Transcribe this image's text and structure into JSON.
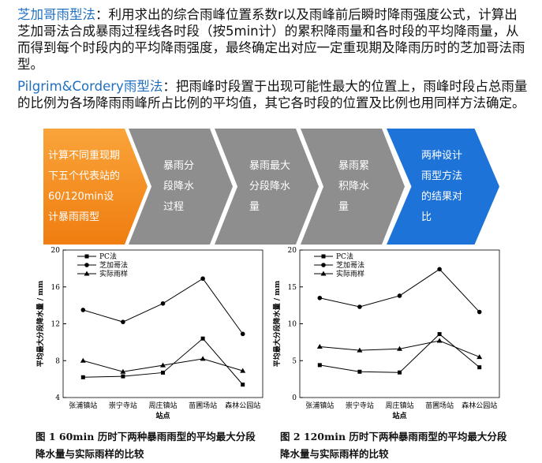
{
  "paragraphs": [
    {
      "label": "芝加哥雨型法",
      "text": "：利用求出的综合雨峰位置系数r以及雨峰前后瞬时降雨强度公式，计算出芝加哥法合成暴雨过程线各时段（按5min计）的累积降雨量和各时段的平均降雨量，从而得到每个时段内的平均降雨强度，最终确定出对应一定重现期及降雨历时的芝加哥法雨型。"
    },
    {
      "label": "Pilgrim&Cordery雨型法",
      "text": "：把雨峰时段置于出现可能性最大的位置上，雨峰时段占总雨量的比例为各场降雨雨峰所占比例的平均值，其它各时段的位置及比例也用同样方法确定。"
    }
  ],
  "process_steps": [
    "计算不同重现期下五个代表站的60/120min设计暴雨雨型",
    "暴雨分段降水过程",
    "暴雨最大分段降水量",
    "暴雨累积降水量",
    "两种设计雨型方法的结果对比"
  ],
  "charts": [
    {
      "type": "line",
      "caption": "图 1 60min 历时下两种暴雨雨型的平均最大分段降水量与实际雨样的比较",
      "xlabel": "站点",
      "ylabel": "平均最大分段降水量 / mm",
      "categories": [
        "张浦镇站",
        "崇宁寺站",
        "周庄镇站",
        "苗圃场站",
        "森林公园站"
      ],
      "ylim": [
        4,
        20
      ],
      "yticks": [
        4,
        8,
        12,
        16,
        20
      ],
      "series": [
        {
          "name": "PC法",
          "color": "#000000",
          "marker": "square",
          "values": [
            6.2,
            6.3,
            6.7,
            10.4,
            5.4
          ]
        },
        {
          "name": "芝加哥法",
          "color": "#000000",
          "marker": "circle",
          "values": [
            13.5,
            12.2,
            14.2,
            16.9,
            10.9
          ]
        },
        {
          "name": "实际雨样",
          "color": "#000000",
          "marker": "triangle",
          "values": [
            8.0,
            6.8,
            7.5,
            8.2,
            6.9
          ]
        }
      ]
    },
    {
      "type": "line",
      "caption": "图 2 120min 历时下两种暴雨雨型的平均最大分段降水量与实际雨样的比较",
      "xlabel": "站点",
      "ylabel": "平均最大分段降水量 / mm",
      "categories": [
        "张浦镇站",
        "崇宁寺站",
        "周庄镇站",
        "苗圃场站",
        "森林公园站"
      ],
      "ylim": [
        0,
        20
      ],
      "yticks": [
        0,
        5,
        10,
        15,
        20
      ],
      "series": [
        {
          "name": "PC法",
          "color": "#000000",
          "marker": "square",
          "values": [
            4.4,
            3.5,
            3.4,
            8.6,
            4.1
          ]
        },
        {
          "name": "芝加哥法",
          "color": "#000000",
          "marker": "circle",
          "values": [
            13.5,
            12.3,
            13.8,
            17.4,
            11.6
          ]
        },
        {
          "name": "实际雨样",
          "color": "#000000",
          "marker": "triangle",
          "values": [
            6.9,
            6.4,
            6.6,
            7.7,
            5.5
          ]
        }
      ]
    }
  ]
}
